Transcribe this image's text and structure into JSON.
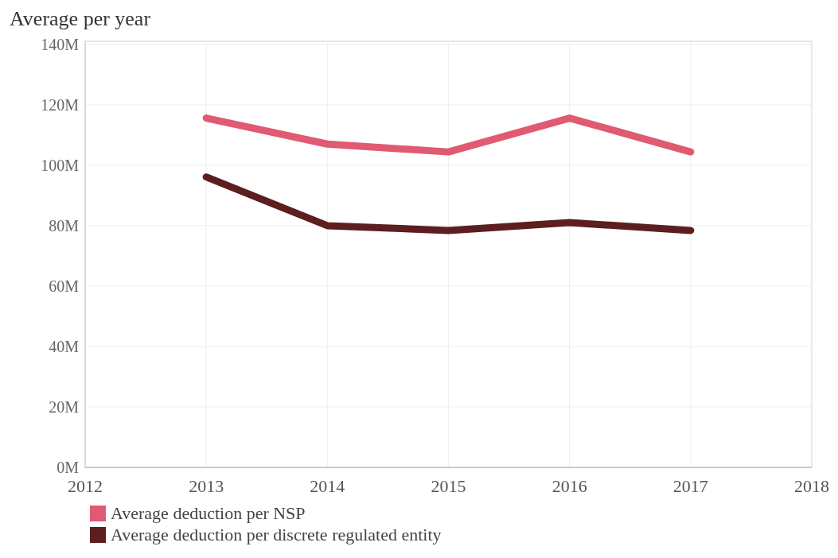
{
  "chart_data": {
    "type": "line",
    "title": "Average per year",
    "x": [
      2013,
      2014,
      2015,
      2016,
      2017
    ],
    "series": [
      {
        "name": "Average deduction per NSP",
        "color": "#e05a72",
        "values": [
          115.6,
          107,
          104.4,
          115.6,
          104.4
        ]
      },
      {
        "name": "Average deduction per discrete regulated entity",
        "color": "#5c1e1e",
        "values": [
          96.1,
          80,
          78.4,
          81,
          78.4
        ]
      }
    ],
    "xlim": [
      2012,
      2018
    ],
    "xticks": [
      2012,
      2013,
      2014,
      2015,
      2016,
      2017,
      2018
    ],
    "ylim": [
      0,
      141
    ],
    "yticks": [
      {
        "value": 0,
        "label": "0M"
      },
      {
        "value": 20,
        "label": "20M"
      },
      {
        "value": 40,
        "label": "40M"
      },
      {
        "value": 60,
        "label": "60M"
      },
      {
        "value": 80,
        "label": "80M"
      },
      {
        "value": 100,
        "label": "100M"
      },
      {
        "value": 120,
        "label": "120M"
      },
      {
        "value": 140,
        "label": "140M"
      }
    ],
    "grid": true,
    "legend": "bottom",
    "marker": "none",
    "line_style": "solid"
  }
}
